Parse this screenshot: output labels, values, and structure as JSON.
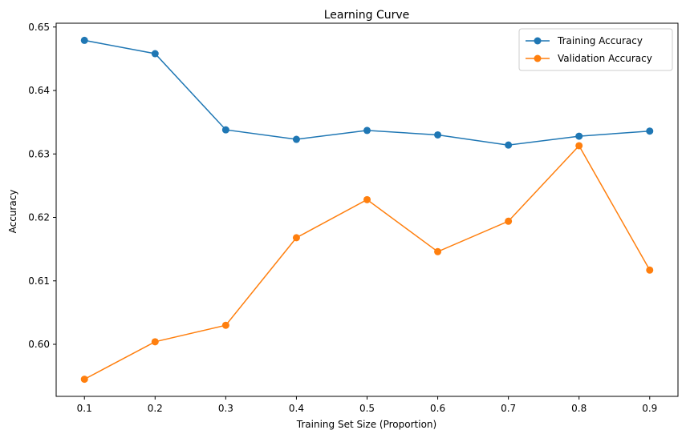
{
  "chart_data": {
    "type": "line",
    "title": "Learning Curve",
    "xlabel": "Training Set Size (Proportion)",
    "ylabel": "Accuracy",
    "x": [
      0.1,
      0.2,
      0.3,
      0.4,
      0.5,
      0.6,
      0.7,
      0.8,
      0.9
    ],
    "x_ticks": [
      "0.1",
      "0.2",
      "0.3",
      "0.4",
      "0.5",
      "0.6",
      "0.7",
      "0.8",
      "0.9"
    ],
    "y_ticks": [
      "0.60",
      "0.61",
      "0.62",
      "0.63",
      "0.64",
      "0.65"
    ],
    "xlim": [
      0.06,
      0.94
    ],
    "ylim": [
      0.5918,
      0.6506
    ],
    "grid": false,
    "legend_position": "top-right",
    "series": [
      {
        "name": "Training Accuracy",
        "color": "#1f77b4",
        "marker": "circle",
        "values": [
          0.6479,
          0.6458,
          0.6338,
          0.6323,
          0.6337,
          0.633,
          0.6314,
          0.6328,
          0.6336
        ]
      },
      {
        "name": "Validation Accuracy",
        "color": "#ff7f0e",
        "marker": "circle",
        "values": [
          0.5945,
          0.6004,
          0.603,
          0.6168,
          0.6228,
          0.6146,
          0.6194,
          0.6313,
          0.6117
        ]
      }
    ]
  }
}
